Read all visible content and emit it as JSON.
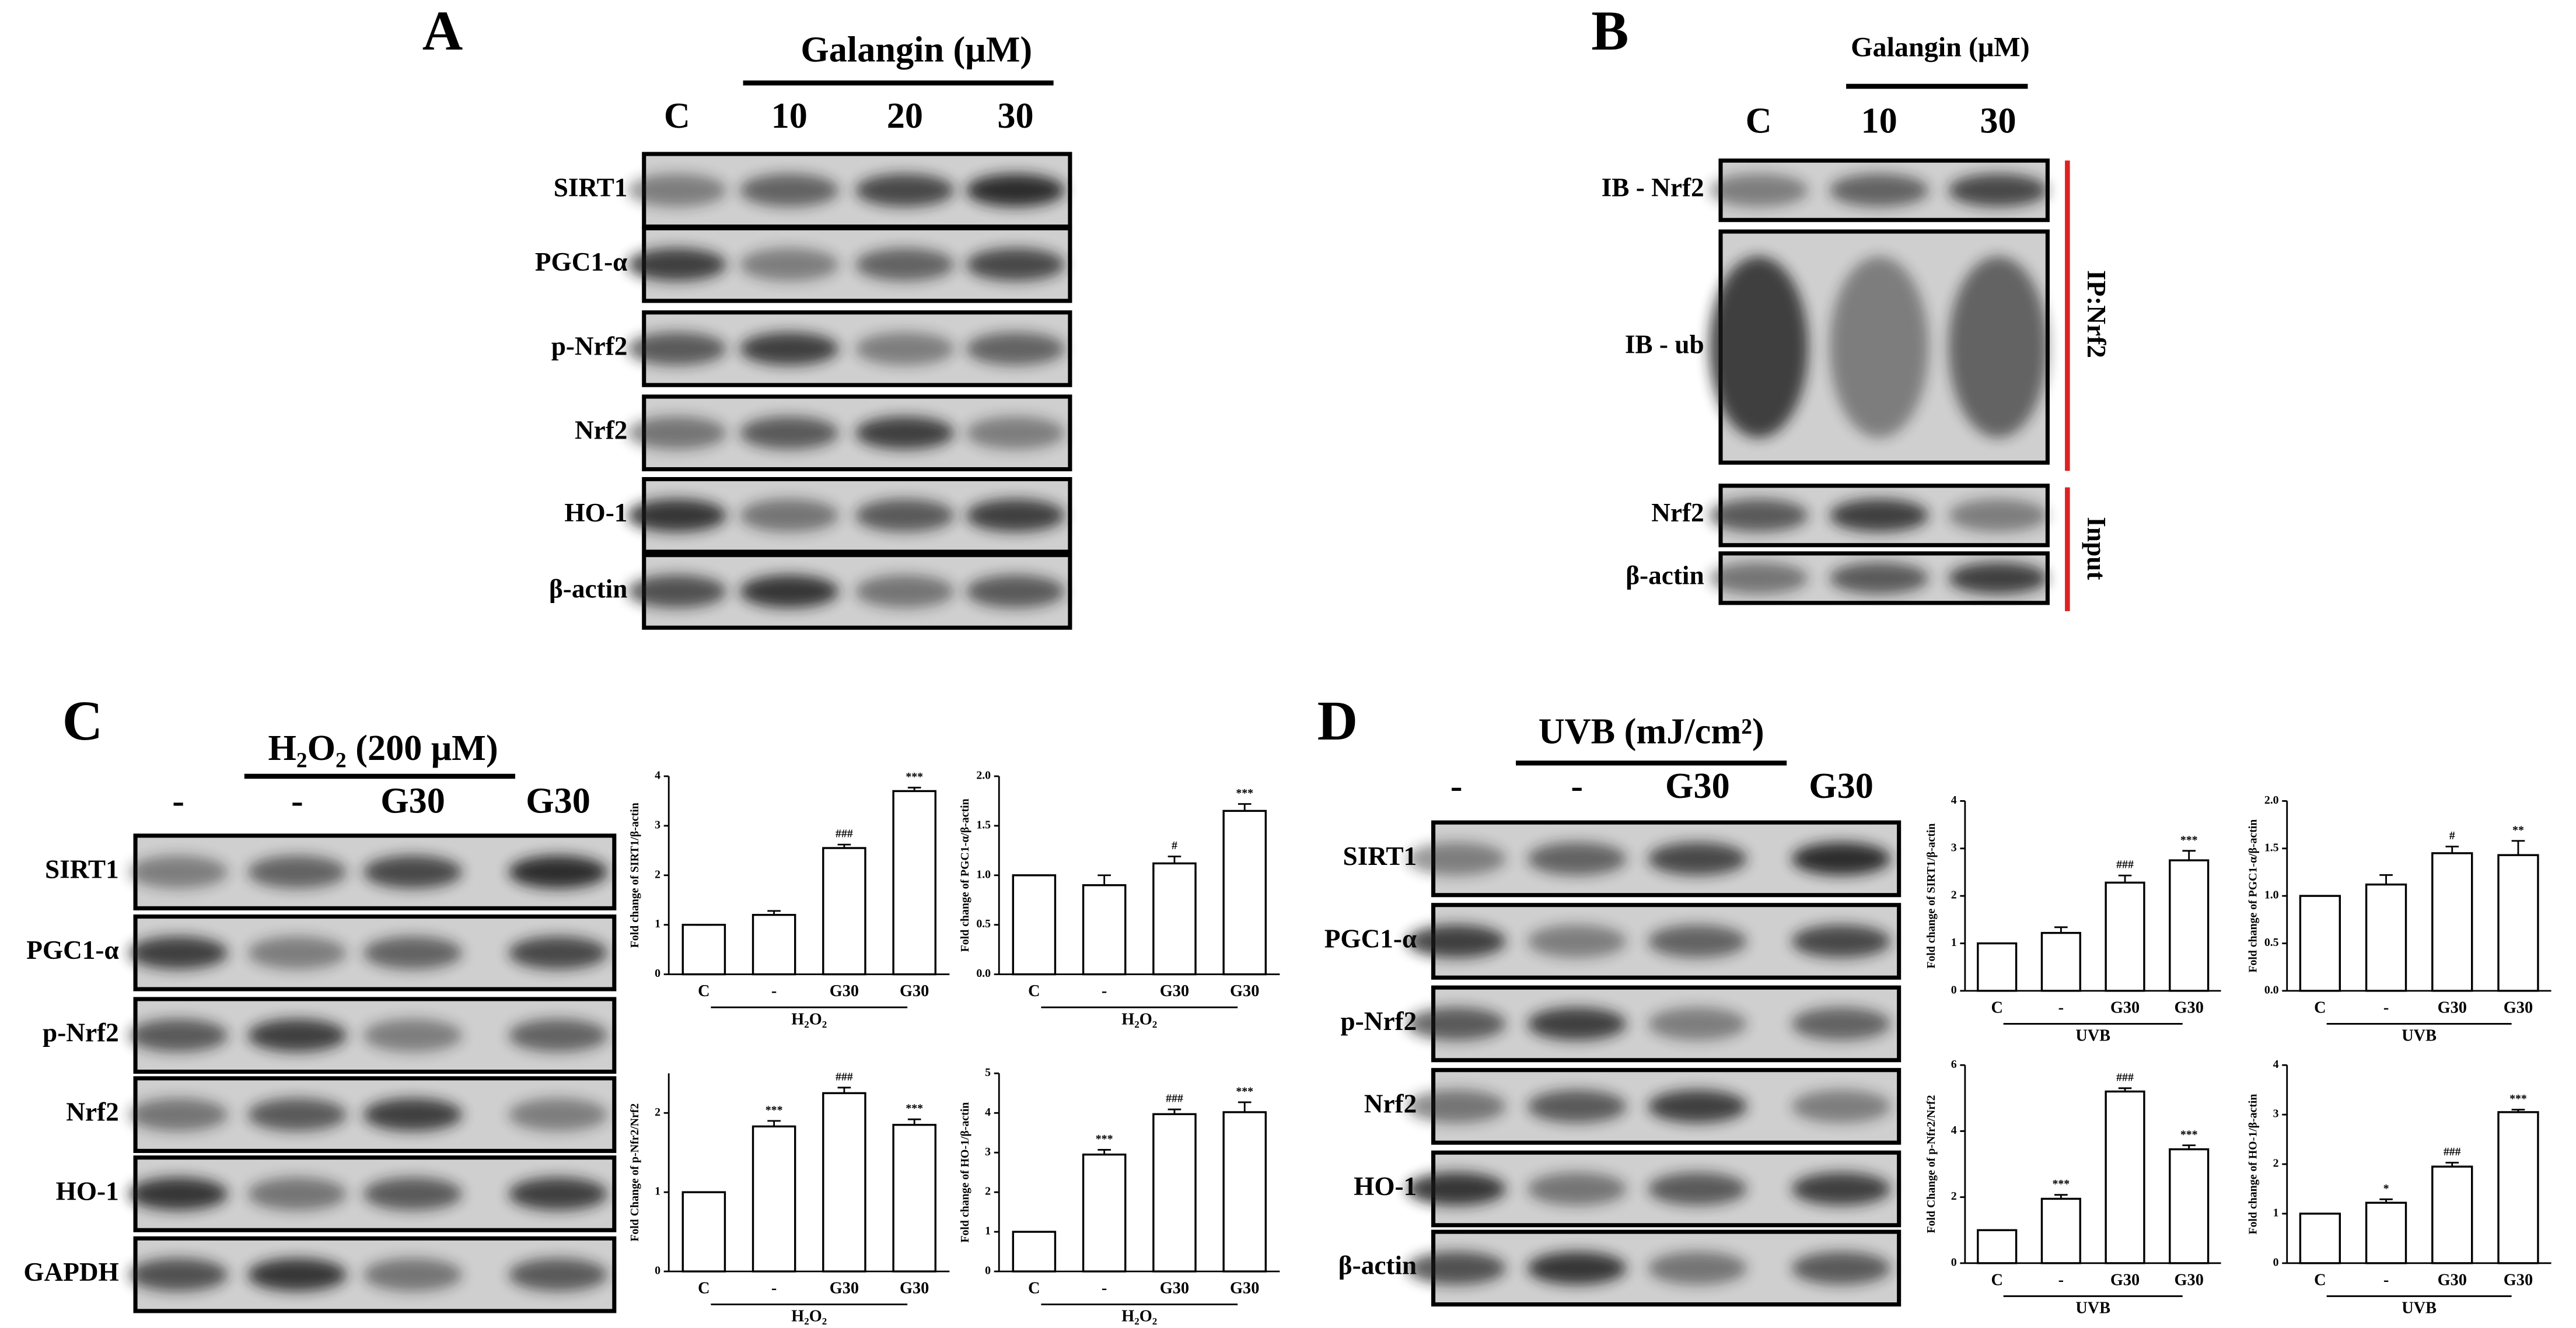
{
  "panels": {
    "A": {
      "letter": "A",
      "treatment": "Galangin (μM)",
      "lanes": [
        "C",
        "10",
        "20",
        "30"
      ],
      "rows": [
        "SIRT1",
        "PGC1-α",
        "p-Nrf2",
        "Nrf2",
        "HO-1",
        "β-actin"
      ]
    },
    "B": {
      "letter": "B",
      "treatment": "Galangin (μM)",
      "lanes": [
        "C",
        "10",
        "30"
      ],
      "rows": [
        "IB - Nrf2",
        "IB - ub",
        "Nrf2",
        "β-actin"
      ],
      "brackets": [
        "IP:Nrf2",
        "Input"
      ]
    },
    "C": {
      "letter": "C",
      "treatment": "H₂O₂ (200 μM)",
      "lanes": [
        "-",
        "-",
        "G30",
        "G30"
      ],
      "rows": [
        "SIRT1",
        "PGC1-α",
        "p-Nrf2",
        "Nrf2",
        "HO-1",
        "GAPDH"
      ],
      "charts": [
        {
          "type": "bar",
          "ylabel": "Fold change of SIRT1/β-actin",
          "categories": [
            "C",
            "-",
            "G30",
            "G30"
          ],
          "group": "H₂O₂",
          "values": [
            1.0,
            1.2,
            2.55,
            3.7
          ],
          "errors": [
            0,
            0.08,
            0.07,
            0.07
          ],
          "significance": [
            null,
            null,
            "###",
            "***"
          ],
          "ylim": [
            0,
            4
          ],
          "yticks": [
            0,
            1,
            2,
            3,
            4
          ]
        },
        {
          "type": "bar",
          "ylabel": "Fold change of PGC1-α/β-actin",
          "categories": [
            "C",
            "-",
            "G30",
            "G30"
          ],
          "group": "H₂O₂",
          "values": [
            1.0,
            0.9,
            1.12,
            1.65
          ],
          "errors": [
            0,
            0.1,
            0.07,
            0.07
          ],
          "significance": [
            null,
            null,
            "#",
            "***"
          ],
          "ylim": [
            0,
            2
          ],
          "yticks": [
            {
              "value": 0,
              "label": "0.0"
            },
            {
              "value": 0.5,
              "label": "0.5"
            },
            {
              "value": 1,
              "label": "1.0"
            },
            {
              "value": 1.5,
              "label": "1.5"
            },
            {
              "value": 2,
              "label": "2.0"
            }
          ]
        },
        {
          "type": "bar",
          "ylabel": "Fold Change of p-Nfr2/Nrf2",
          "categories": [
            "C",
            "-",
            "G30",
            "G30"
          ],
          "group": "H₂O₂",
          "values": [
            1.0,
            1.83,
            2.25,
            1.85
          ],
          "errors": [
            0,
            0.07,
            0.07,
            0.07
          ],
          "significance": [
            null,
            "***",
            "###",
            "***"
          ],
          "ylim": [
            0,
            2.5
          ],
          "yticks": [
            0,
            1,
            2
          ]
        },
        {
          "type": "bar",
          "ylabel": "Fold change of HO-1/β-actin",
          "categories": [
            "C",
            "-",
            "G30",
            "G30"
          ],
          "group": "H₂O₂",
          "values": [
            1.0,
            2.95,
            3.97,
            4.02
          ],
          "errors": [
            0,
            0.12,
            0.12,
            0.25
          ],
          "significance": [
            null,
            "***",
            "###",
            "***"
          ],
          "ylim": [
            0,
            5
          ],
          "yticks": [
            0,
            1,
            2,
            3,
            4,
            5
          ]
        }
      ]
    },
    "D": {
      "letter": "D",
      "treatment": "UVB (mJ/cm²)",
      "lanes": [
        "-",
        "-",
        "G30",
        "G30"
      ],
      "rows": [
        "SIRT1",
        "PGC1-α",
        "p-Nrf2",
        "Nrf2",
        "HO-1",
        "β-actin"
      ],
      "charts": [
        {
          "type": "bar",
          "ylabel": "Fold change of SIRT1/β-actin",
          "categories": [
            "C",
            "-",
            "G30",
            "G30"
          ],
          "group": "UVB",
          "values": [
            1.0,
            1.22,
            2.28,
            2.75
          ],
          "errors": [
            0,
            0.12,
            0.15,
            0.2
          ],
          "significance": [
            null,
            null,
            "###",
            "***"
          ],
          "ylim": [
            0,
            4
          ],
          "yticks": [
            0,
            1,
            2,
            3,
            4
          ]
        },
        {
          "type": "bar",
          "ylabel": "Fold change of PGC1-α/β-actin",
          "categories": [
            "C",
            "-",
            "G30",
            "G30"
          ],
          "group": "UVB",
          "values": [
            1.0,
            1.12,
            1.45,
            1.43
          ],
          "errors": [
            0,
            0.1,
            0.07,
            0.15
          ],
          "significance": [
            null,
            null,
            "#",
            "**"
          ],
          "ylim": [
            0,
            2
          ],
          "yticks": [
            {
              "value": 0,
              "label": "0.0"
            },
            {
              "value": 0.5,
              "label": "0.5"
            },
            {
              "value": 1,
              "label": "1.0"
            },
            {
              "value": 1.5,
              "label": "1.5"
            },
            {
              "value": 2,
              "label": "2.0"
            }
          ]
        },
        {
          "type": "bar",
          "ylabel": "Fold Change of p-Nfr2/Nrf2",
          "categories": [
            "C",
            "-",
            "G30",
            "G30"
          ],
          "group": "UVB",
          "values": [
            1.0,
            1.95,
            5.2,
            3.45
          ],
          "errors": [
            0,
            0.12,
            0.1,
            0.12
          ],
          "significance": [
            null,
            "***",
            "###",
            "***"
          ],
          "ylim": [
            0,
            6
          ],
          "yticks": [
            0,
            2,
            4,
            6
          ]
        },
        {
          "type": "bar",
          "ylabel": "Fold change of HO-1/β-actin",
          "categories": [
            "C",
            "-",
            "G30",
            "G30"
          ],
          "group": "UVB",
          "values": [
            1.0,
            1.22,
            1.95,
            3.05
          ],
          "errors": [
            0,
            0.07,
            0.08,
            0.05
          ],
          "significance": [
            null,
            "*",
            "###",
            "***"
          ],
          "ylim": [
            0,
            4
          ],
          "yticks": [
            0,
            1,
            2,
            3,
            4
          ]
        }
      ]
    }
  }
}
